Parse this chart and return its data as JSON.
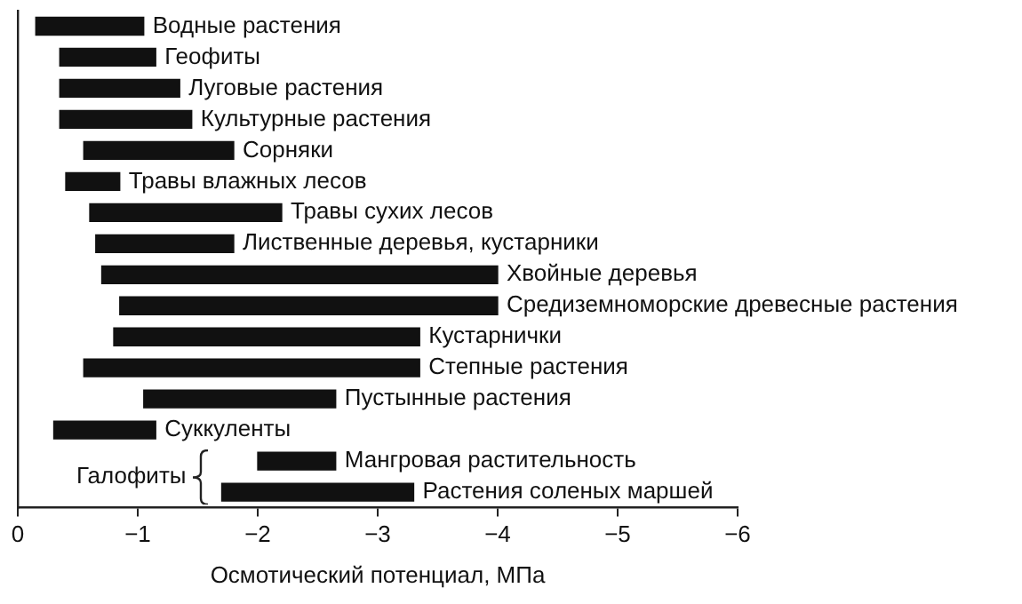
{
  "chart_data": {
    "type": "bar",
    "orientation": "horizontal",
    "xlabel": "Осмотический потенциал, МПа",
    "categories": [
      "Водные растения",
      "Геофиты",
      "Луговые растения",
      "Культурные растения",
      "Сорняки",
      "Травы влажных лесов",
      "Травы сухих лесов",
      "Лиственные деревья, кустарники",
      "Хвойные деревья",
      "Средиземноморские древесные растения",
      "Кустарнички",
      "Степные растения",
      "Пустынные растения",
      "Суккуленты",
      "Мангровая растительность",
      "Растения соленых маршей"
    ],
    "base": [
      -0.15,
      -0.35,
      -0.35,
      -0.35,
      -0.55,
      -0.4,
      -0.6,
      -0.65,
      -0.7,
      -0.85,
      -0.8,
      -0.55,
      -1.05,
      -0.3,
      -2.0,
      -1.7
    ],
    "values": [
      -0.9,
      -0.8,
      -1.0,
      -1.1,
      -1.25,
      -0.45,
      -1.6,
      -1.15,
      -3.3,
      -3.15,
      -2.55,
      -2.8,
      -1.6,
      -0.85,
      -0.65,
      -1.6
    ],
    "color": "#111111",
    "xlim": [
      0,
      -6
    ],
    "xticks": [
      0,
      {
        "value": -1,
        "label": "−1"
      },
      {
        "value": -2,
        "label": "−2"
      },
      {
        "value": -3,
        "label": "−3"
      },
      {
        "value": -4,
        "label": "−4"
      },
      {
        "value": -5,
        "label": "−5"
      },
      {
        "value": -6,
        "label": "−6"
      }
    ],
    "annotations": [
      "Галофиты"
    ],
    "grid": false,
    "legend": false
  }
}
